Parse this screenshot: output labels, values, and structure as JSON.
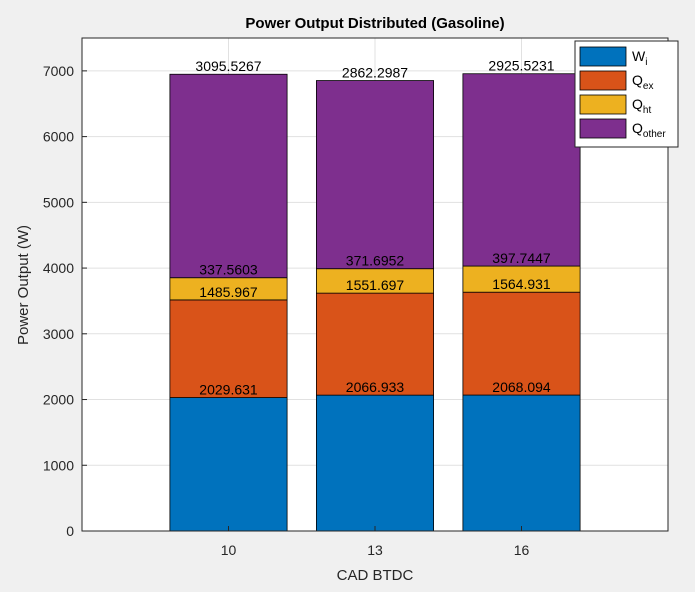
{
  "chart_data": {
    "type": "bar",
    "stacked": true,
    "title": "Power Output Distributed (Gasoline)",
    "xlabel": "CAD BTDC",
    "ylabel": "Power Output (W)",
    "categories": [
      "10",
      "13",
      "16"
    ],
    "ylim": [
      0,
      7500
    ],
    "yticks": [
      "0",
      "1000",
      "2000",
      "3000",
      "4000",
      "5000",
      "6000",
      "7000"
    ],
    "grid": true,
    "legend_position": "top-right",
    "series": [
      {
        "name": "W",
        "sub": "i",
        "color": "#0072BD",
        "values": [
          2029.631,
          2066.933,
          2068.094
        ],
        "labels": [
          "2029.631",
          "2066.933",
          "2068.094"
        ]
      },
      {
        "name": "Q",
        "sub": "ex",
        "color": "#D95319",
        "values": [
          1485.967,
          1551.697,
          1564.931
        ],
        "labels": [
          "1485.967",
          "1551.697",
          "1564.931"
        ]
      },
      {
        "name": "Q",
        "sub": "ht",
        "color": "#EDB120",
        "values": [
          337.5603,
          371.6952,
          397.7447
        ],
        "labels": [
          "337.5603",
          "371.6952",
          "397.7447"
        ]
      },
      {
        "name": "Q",
        "sub": "other",
        "color": "#7E2F8E",
        "values": [
          3095.5267,
          2862.2987,
          2925.5231
        ],
        "labels": [
          "3095.5267",
          "2862.2987",
          "2925.5231"
        ]
      }
    ]
  }
}
